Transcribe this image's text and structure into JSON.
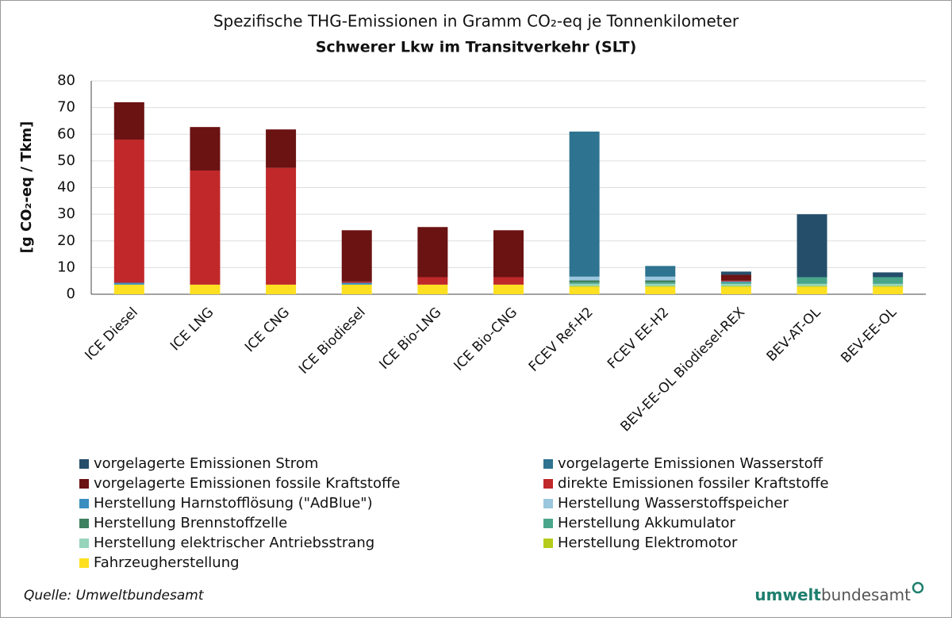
{
  "chart_data": {
    "type": "stacked-bar",
    "title": "Spezifische THG-Emissionen in Gramm CO₂-eq je Tonnenkilometer",
    "subtitle": "Schwerer Lkw im Transitverkehr (SLT)",
    "y_label": "[g CO₂-eq / Tkm]",
    "categories": [
      "ICE Diesel",
      "ICE LNG",
      "ICE CNG",
      "ICE Biodiesel",
      "ICE Bio-LNG",
      "ICE Bio-CNG",
      "FCEV Ref-H2",
      "FCEV EE-H2",
      "BEV-EE-OL Biodiesel-REX",
      "BEV-AT-OL",
      "BEV-EE-OL"
    ],
    "series": [
      {
        "name": "Fahrzeugherstellung",
        "color": "#fde021",
        "values": [
          3.6,
          3.6,
          3.6,
          3.6,
          3.6,
          3.6,
          2.8,
          2.8,
          2.8,
          2.8,
          2.8
        ]
      },
      {
        "name": "Herstellung Elektromotor",
        "color": "#b5cc1a",
        "values": [
          0,
          0,
          0,
          0,
          0,
          0,
          0.3,
          0.3,
          0.3,
          0.3,
          0.3
        ]
      },
      {
        "name": "Herstellung elektrischer Antriebsstrang",
        "color": "#96d4bc",
        "values": [
          0,
          0,
          0,
          0,
          0,
          0,
          0.8,
          0.8,
          0.8,
          0.8,
          0.8
        ]
      },
      {
        "name": "Herstellung Akkumulator",
        "color": "#4aa68a",
        "values": [
          0,
          0,
          0,
          0,
          0,
          0,
          0.5,
          0.5,
          0.6,
          2.5,
          2.5
        ]
      },
      {
        "name": "Herstellung Brennstoffzelle",
        "color": "#3f8060",
        "values": [
          0,
          0,
          0,
          0,
          0,
          0,
          0.8,
          0.8,
          0,
          0,
          0
        ]
      },
      {
        "name": "Herstellung Wasserstoffspeicher",
        "color": "#9ac6de",
        "values": [
          0,
          0,
          0,
          0,
          0,
          0,
          1.4,
          1.4,
          0,
          0,
          0
        ]
      },
      {
        "name": "Herstellung Harnstofflösung (\"AdBlue\")",
        "color": "#3b8fc0",
        "values": [
          0.7,
          0,
          0,
          0.7,
          0,
          0,
          0,
          0,
          0.3,
          0,
          0
        ]
      },
      {
        "name": "direkte Emissionen fossiler Kraftstoffe",
        "color": "#c0282a",
        "values": [
          53.7,
          42.8,
          43.8,
          0.5,
          2.8,
          2.8,
          0,
          0,
          0.3,
          0,
          0
        ]
      },
      {
        "name": "vorgelagerte Emissionen fossile Kraftstoffe",
        "color": "#6b1212",
        "values": [
          14,
          16.3,
          14.4,
          19.2,
          18.8,
          17.6,
          0,
          0,
          2.2,
          0,
          0
        ]
      },
      {
        "name": "vorgelagerte Emissionen Wasserstoff",
        "color": "#2e7390",
        "values": [
          0,
          0,
          0,
          0,
          0,
          0,
          54.4,
          4,
          0,
          0,
          0
        ]
      },
      {
        "name": "vorgelagerte Emissionen Strom",
        "color": "#254e6b",
        "values": [
          0,
          0,
          0,
          0,
          0,
          0,
          0,
          0,
          1.2,
          23.6,
          1.8
        ]
      }
    ],
    "ylim": [
      0,
      80
    ],
    "yticks": [
      0,
      10,
      20,
      30,
      40,
      50,
      60,
      70,
      80
    ],
    "grid": true
  },
  "source": "Quelle: Umweltbundesamt",
  "logo": {
    "part1": "umwelt",
    "part2": "bundesamt"
  }
}
